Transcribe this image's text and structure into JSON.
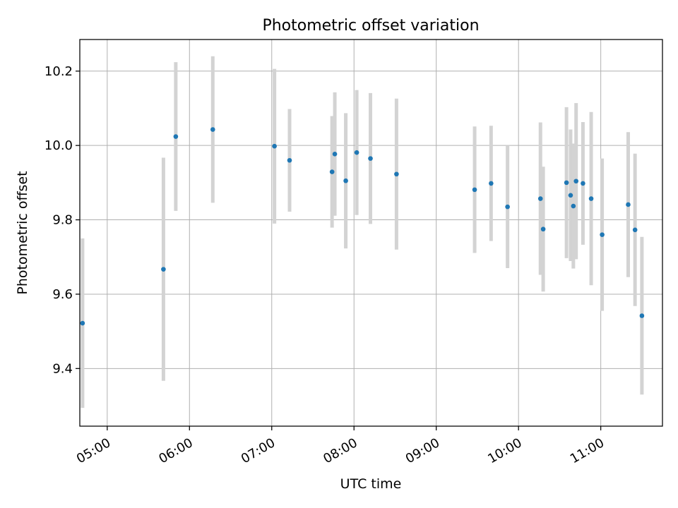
{
  "chart_data": {
    "type": "scatter",
    "title": "Photometric offset variation",
    "xlabel": "UTC time",
    "ylabel": "Photometric offset",
    "xlim": [
      "04:40",
      "11:45"
    ],
    "ylim": [
      9.245,
      10.285
    ],
    "x_ticks": [
      "05:00",
      "06:00",
      "07:00",
      "08:00",
      "09:00",
      "10:00",
      "11:00"
    ],
    "y_ticks": [
      "9.4",
      "9.6",
      "9.8",
      "10.0",
      "10.2"
    ],
    "grid": true,
    "legend": "none",
    "colors": {
      "points": "#1f77b4",
      "error_bars": "#d3d3d3",
      "grid": "#b0b0b0"
    },
    "points": [
      {
        "x": "04:42",
        "y": 9.522,
        "err": 0.228
      },
      {
        "x": "05:41",
        "y": 9.667,
        "err": 0.3
      },
      {
        "x": "05:50",
        "y": 10.024,
        "err": 0.2
      },
      {
        "x": "06:17",
        "y": 10.043,
        "err": 0.197
      },
      {
        "x": "07:02",
        "y": 9.998,
        "err": 0.208
      },
      {
        "x": "07:13",
        "y": 9.96,
        "err": 0.138
      },
      {
        "x": "07:44",
        "y": 9.929,
        "err": 0.15
      },
      {
        "x": "07:46",
        "y": 9.977,
        "err": 0.166
      },
      {
        "x": "07:54",
        "y": 9.905,
        "err": 0.182
      },
      {
        "x": "08:02",
        "y": 9.981,
        "err": 0.168
      },
      {
        "x": "08:12",
        "y": 9.965,
        "err": 0.176
      },
      {
        "x": "08:31",
        "y": 9.923,
        "err": 0.203
      },
      {
        "x": "09:28",
        "y": 9.881,
        "err": 0.17
      },
      {
        "x": "09:40",
        "y": 9.898,
        "err": 0.155
      },
      {
        "x": "09:52",
        "y": 9.835,
        "err": 0.165
      },
      {
        "x": "10:16",
        "y": 9.857,
        "err": 0.205
      },
      {
        "x": "10:18",
        "y": 9.775,
        "err": 0.168
      },
      {
        "x": "10:35",
        "y": 9.9,
        "err": 0.203
      },
      {
        "x": "10:38",
        "y": 9.866,
        "err": 0.177
      },
      {
        "x": "10:40",
        "y": 9.837,
        "err": 0.168
      },
      {
        "x": "10:42",
        "y": 9.904,
        "err": 0.21
      },
      {
        "x": "10:47",
        "y": 9.898,
        "err": 0.165
      },
      {
        "x": "10:53",
        "y": 9.857,
        "err": 0.233
      },
      {
        "x": "11:01",
        "y": 9.76,
        "err": 0.205
      },
      {
        "x": "11:20",
        "y": 9.841,
        "err": 0.195
      },
      {
        "x": "11:25",
        "y": 9.773,
        "err": 0.205
      },
      {
        "x": "11:30",
        "y": 9.542,
        "err": 0.212
      }
    ]
  }
}
